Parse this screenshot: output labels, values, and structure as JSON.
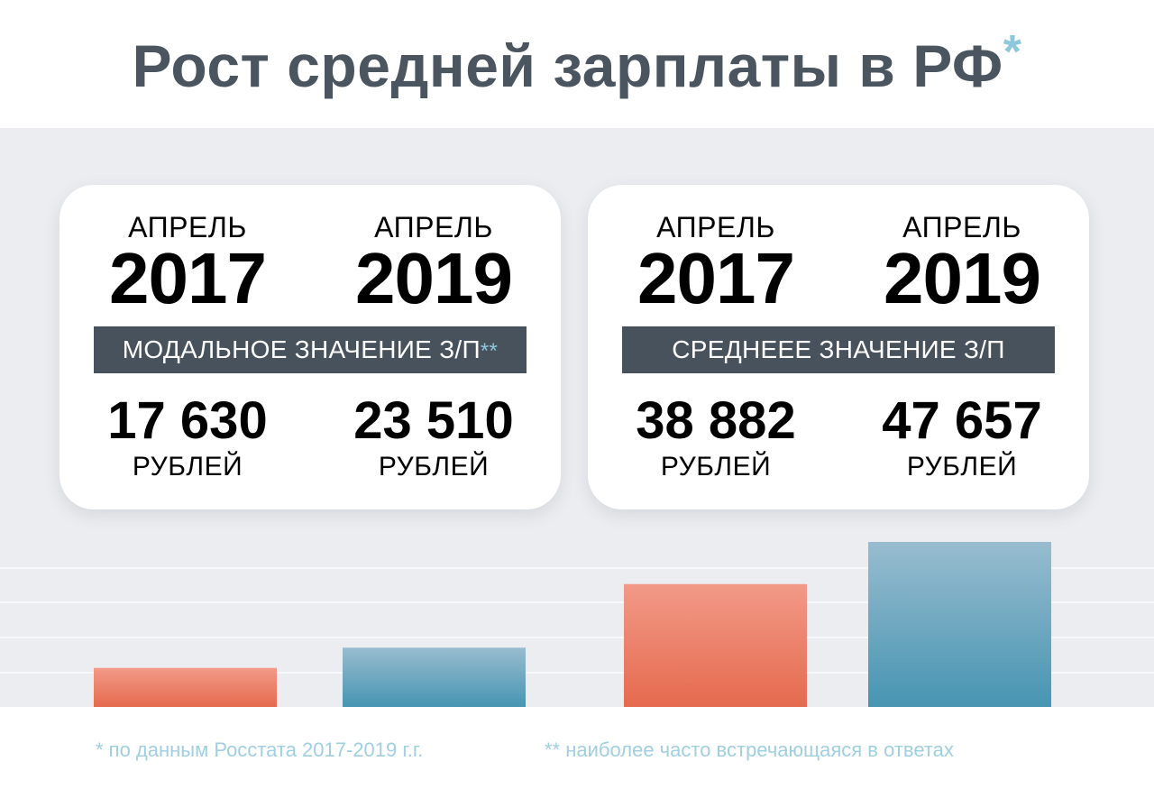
{
  "title": "Рост средней зарплаты в РФ",
  "title_mark": "*",
  "cards": [
    {
      "band_label": "МОДАЛЬНОЕ ЗНАЧЕНИЕ З/П",
      "band_mark": "**",
      "left": {
        "month": "АПРЕЛЬ",
        "year": "2017",
        "value": "17 630",
        "unit": "РУБЛЕЙ"
      },
      "right": {
        "month": "АПРЕЛЬ",
        "year": "2019",
        "value": "23 510",
        "unit": "РУБЛЕЙ"
      }
    },
    {
      "band_label": "СРЕДНЕЕЕ ЗНАЧЕНИЕ З/П",
      "band_mark": "",
      "left": {
        "month": "АПРЕЛЬ",
        "year": "2017",
        "value": "38 882",
        "unit": "РУБЛЕЙ"
      },
      "right": {
        "month": "АПРЕЛЬ",
        "year": "2019",
        "value": "47 657",
        "unit": "РУБЛЕЙ"
      }
    }
  ],
  "footnotes": {
    "left": "* по данным Росстата 2017-2019 г.г.",
    "right": "** наиболее часто встречающаяся в ответах"
  },
  "colors": {
    "y2017_light": "#f3a195",
    "y2017_dark": "#e25d44",
    "y2019_light": "#7fbfd7",
    "y2019_dark": "#1a86a3",
    "bar2017_top": "#f29a88",
    "bar2017_bottom": "#e56a4e",
    "bar2019_top": "#98bccf",
    "bar2019_bottom": "#4795b2"
  },
  "chart_data": {
    "type": "bar",
    "categories": [
      "Модальное 2017",
      "Модальное 2019",
      "Среднее 2017",
      "Среднее 2019"
    ],
    "values": [
      17630,
      23510,
      38882,
      47657
    ],
    "ylim": [
      0,
      50000
    ],
    "grid": true
  }
}
